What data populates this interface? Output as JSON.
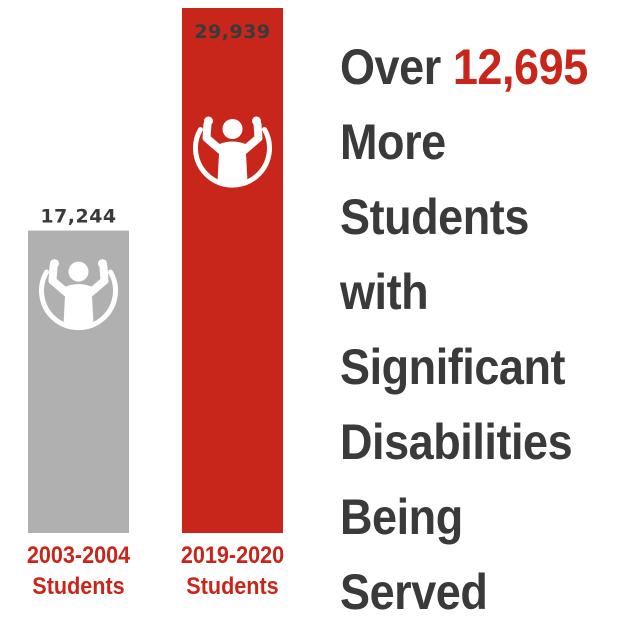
{
  "chart_data": {
    "type": "bar",
    "categories": [
      "2003-2004 Students",
      "2019-2020 Students"
    ],
    "category_lines": [
      [
        "2003-2004",
        "Students"
      ],
      [
        "2019-2020",
        "Students"
      ]
    ],
    "values": [
      17244,
      29939
    ],
    "value_labels": [
      "17,244",
      "29,939"
    ],
    "colors": [
      "#b0b0b0",
      "#c8261a"
    ],
    "label_color": "#c8261a",
    "value_label_color": "#3a3a3a",
    "icon": "child-raised-arms-icon",
    "ylim": [
      0,
      29939
    ],
    "grid": false
  },
  "headline": {
    "prefix": "Over",
    "number": "12,695",
    "lines": [
      "More",
      "Students",
      "with",
      "Significant",
      "Disabilities",
      "Being",
      "Served"
    ]
  }
}
